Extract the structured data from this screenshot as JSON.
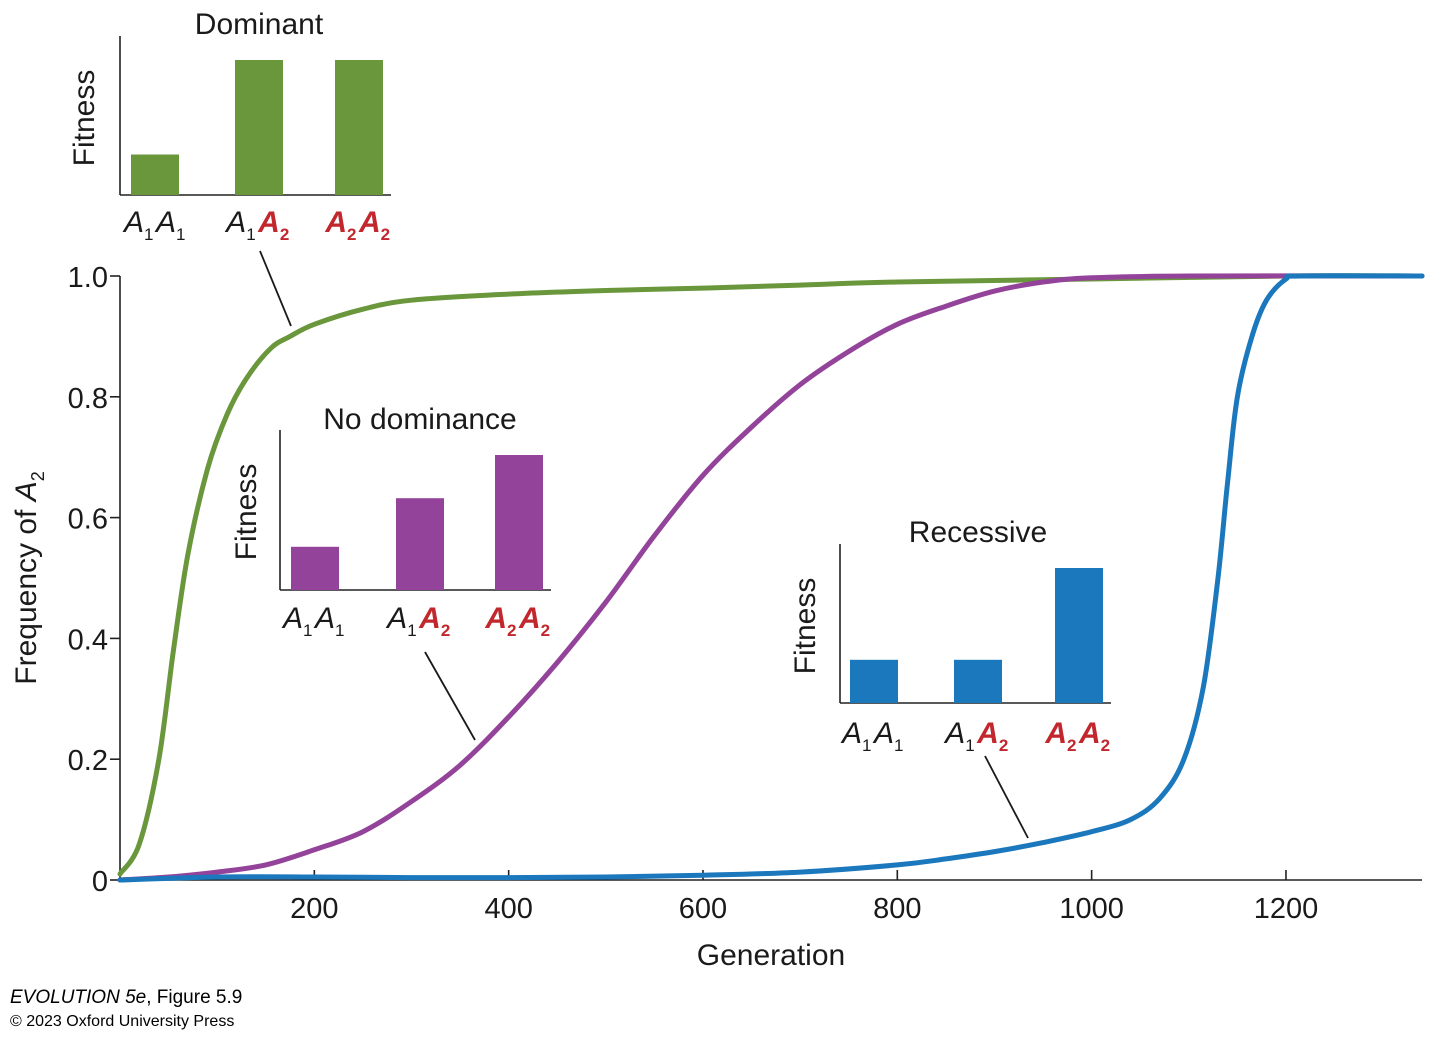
{
  "chart_data": {
    "type": "line",
    "xlabel": "Generation",
    "ylabel": "Frequency of A₂",
    "xlim": [
      0,
      1340
    ],
    "ylim": [
      0,
      1.0
    ],
    "x_ticks": [
      200,
      400,
      600,
      800,
      1000,
      1200
    ],
    "y_ticks": [
      0,
      0.2,
      0.4,
      0.6,
      0.8,
      1.0
    ],
    "y_tick_labels": [
      "0",
      "0.2",
      "0.4",
      "0.6",
      "0.8",
      "1.0"
    ],
    "series": [
      {
        "key": "dominant",
        "color": "#6a973c",
        "points": [
          [
            0,
            0.01
          ],
          [
            20,
            0.06
          ],
          [
            40,
            0.2
          ],
          [
            55,
            0.38
          ],
          [
            70,
            0.54
          ],
          [
            90,
            0.68
          ],
          [
            110,
            0.77
          ],
          [
            130,
            0.83
          ],
          [
            155,
            0.88
          ],
          [
            175,
            0.9
          ],
          [
            200,
            0.92
          ],
          [
            250,
            0.945
          ],
          [
            300,
            0.96
          ],
          [
            400,
            0.97
          ],
          [
            500,
            0.976
          ],
          [
            600,
            0.98
          ],
          [
            700,
            0.985
          ],
          [
            800,
            0.99
          ],
          [
            1000,
            0.995
          ],
          [
            1200,
            1.0
          ],
          [
            1340,
            1.0
          ]
        ]
      },
      {
        "key": "no-dominance",
        "color": "#93439a",
        "points": [
          [
            0,
            0.0
          ],
          [
            50,
            0.005
          ],
          [
            100,
            0.013
          ],
          [
            150,
            0.025
          ],
          [
            200,
            0.05
          ],
          [
            250,
            0.08
          ],
          [
            300,
            0.13
          ],
          [
            350,
            0.19
          ],
          [
            400,
            0.27
          ],
          [
            450,
            0.36
          ],
          [
            500,
            0.46
          ],
          [
            550,
            0.57
          ],
          [
            600,
            0.67
          ],
          [
            650,
            0.75
          ],
          [
            700,
            0.82
          ],
          [
            750,
            0.875
          ],
          [
            800,
            0.92
          ],
          [
            850,
            0.95
          ],
          [
            900,
            0.975
          ],
          [
            950,
            0.99
          ],
          [
            1000,
            0.997
          ],
          [
            1100,
            1.0
          ],
          [
            1340,
            1.0
          ]
        ]
      },
      {
        "key": "recessive",
        "color": "#1b78bd",
        "points": [
          [
            0,
            0.0
          ],
          [
            100,
            0.005
          ],
          [
            200,
            0.005
          ],
          [
            300,
            0.004
          ],
          [
            400,
            0.004
          ],
          [
            500,
            0.005
          ],
          [
            600,
            0.008
          ],
          [
            700,
            0.013
          ],
          [
            800,
            0.025
          ],
          [
            850,
            0.035
          ],
          [
            900,
            0.047
          ],
          [
            950,
            0.062
          ],
          [
            1000,
            0.08
          ],
          [
            1040,
            0.1
          ],
          [
            1070,
            0.135
          ],
          [
            1095,
            0.2
          ],
          [
            1115,
            0.32
          ],
          [
            1130,
            0.5
          ],
          [
            1140,
            0.66
          ],
          [
            1150,
            0.8
          ],
          [
            1165,
            0.9
          ],
          [
            1180,
            0.96
          ],
          [
            1200,
            0.995
          ],
          [
            1215,
            1.0
          ],
          [
            1340,
            1.0
          ]
        ]
      }
    ],
    "insets": [
      {
        "key": "dominant",
        "title": "Dominant",
        "ylabel": "Fitness",
        "color": "#6a973c",
        "fitness": [
          0.3,
          1.0,
          1.0
        ],
        "genotypes": [
          "A1A1",
          "A1A2",
          "A2A2"
        ]
      },
      {
        "key": "no-dominance",
        "title": "No dominance",
        "ylabel": "Fitness",
        "color": "#93439a",
        "fitness": [
          0.32,
          0.68,
          1.0
        ],
        "genotypes": [
          "A1A1",
          "A1A2",
          "A2A2"
        ]
      },
      {
        "key": "recessive",
        "title": "Recessive",
        "ylabel": "Fitness",
        "color": "#1b78bd",
        "fitness": [
          0.32,
          0.32,
          1.0
        ],
        "genotypes": [
          "A1A1",
          "A1A2",
          "A2A2"
        ]
      }
    ],
    "allele_colors": {
      "A1": "#1a1a1a",
      "A2": "#c1272d"
    }
  },
  "credit": {
    "line1_italic": "EVOLUTION 5e",
    "line1_rest": ", Figure 5.9",
    "line2": "© 2023 Oxford University Press"
  }
}
